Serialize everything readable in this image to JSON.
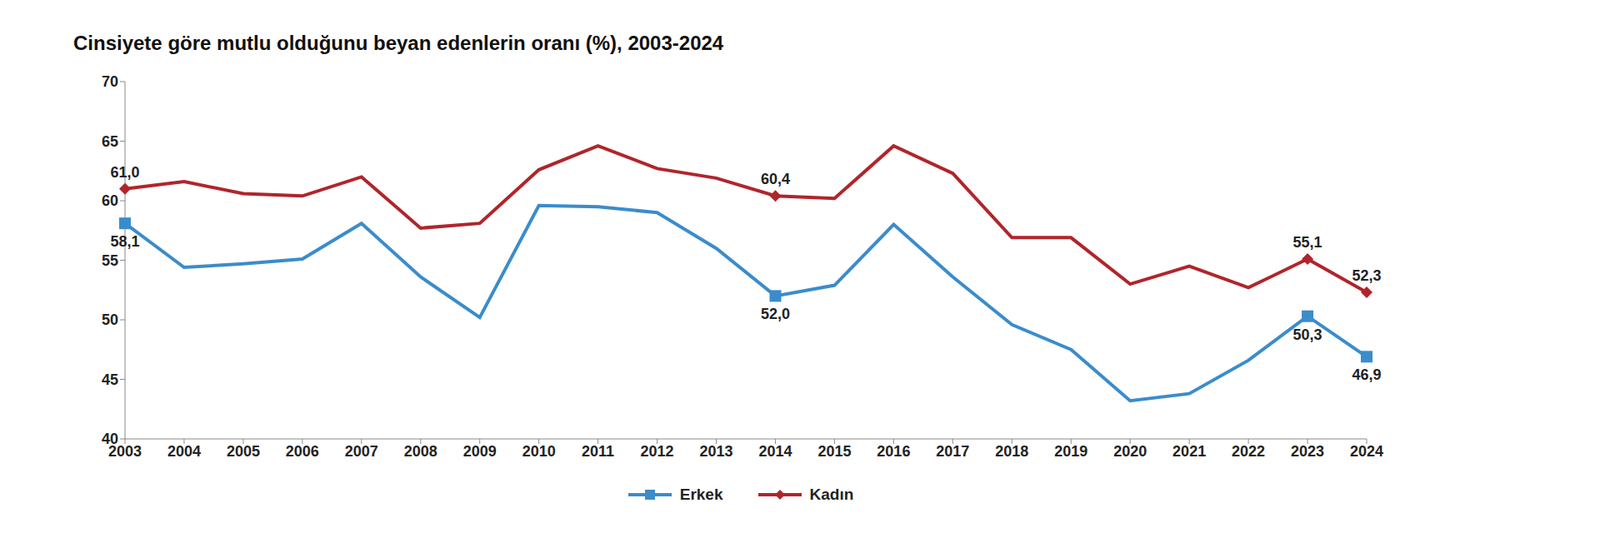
{
  "chart_data": {
    "type": "line",
    "title": "Cinsiyete göre mutlu olduğunu beyan edenlerin oranı (%), 2003-2024",
    "categories": [
      "2003",
      "2004",
      "2005",
      "2006",
      "2007",
      "2008",
      "2009",
      "2010",
      "2011",
      "2012",
      "2013",
      "2014",
      "2015",
      "2016",
      "2017",
      "2018",
      "2019",
      "2020",
      "2021",
      "2022",
      "2023",
      "2024"
    ],
    "series": [
      {
        "name": "Erkek",
        "color": "#3b8ccb",
        "marker": "square",
        "values": [
          58.1,
          54.4,
          54.7,
          55.1,
          58.1,
          53.6,
          50.2,
          59.6,
          59.5,
          59.0,
          56.0,
          52.0,
          52.9,
          58.0,
          53.6,
          49.6,
          47.5,
          43.2,
          43.8,
          46.6,
          50.3,
          46.9
        ],
        "value_labels": [
          "58,1",
          null,
          null,
          null,
          null,
          null,
          null,
          null,
          null,
          null,
          null,
          "52,0",
          null,
          null,
          null,
          null,
          null,
          null,
          null,
          null,
          "50,3",
          "46,9"
        ]
      },
      {
        "name": "Kadın",
        "color": "#b0252b",
        "marker": "diamond",
        "values": [
          61.0,
          61.6,
          60.6,
          60.4,
          62.0,
          57.7,
          58.1,
          62.6,
          64.6,
          62.7,
          61.9,
          60.4,
          60.2,
          64.6,
          62.3,
          56.9,
          56.9,
          53.0,
          54.5,
          52.7,
          55.1,
          52.3
        ],
        "value_labels": [
          "61,0",
          null,
          null,
          null,
          null,
          null,
          null,
          null,
          null,
          null,
          null,
          "60,4",
          null,
          null,
          null,
          null,
          null,
          null,
          null,
          null,
          "55,1",
          "52,3"
        ]
      }
    ],
    "ylim": [
      40,
      70
    ],
    "yticks": [
      40,
      45,
      50,
      55,
      60,
      65,
      70
    ],
    "grid": false,
    "legend": "bottom",
    "data_labels": true
  }
}
